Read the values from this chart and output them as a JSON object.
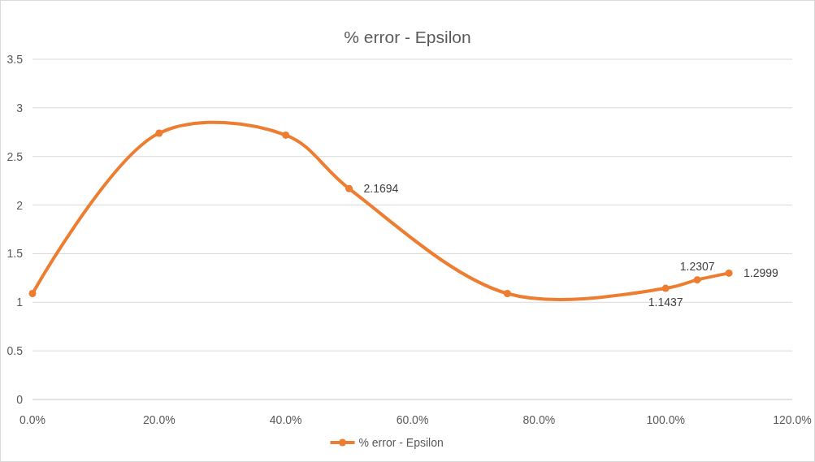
{
  "chart_data": {
    "type": "line",
    "title": "% error - Epsilon",
    "x": [
      0,
      0.2,
      0.4,
      0.5,
      0.75,
      1.0,
      1.05,
      1.1
    ],
    "series": [
      {
        "name": "% error - Epsilon",
        "color": "#ed7d31",
        "values": [
          1.09,
          2.74,
          2.72,
          2.1694,
          1.09,
          1.1437,
          1.2307,
          1.2999
        ],
        "value_labels": [
          null,
          null,
          null,
          "2.1694",
          null,
          "1.1437",
          "1.2307",
          "1.2999"
        ]
      }
    ],
    "xlim": [
      0,
      1.2
    ],
    "xticks": [
      {
        "value": 0,
        "label": "0.0%"
      },
      {
        "value": 0.2,
        "label": "20.0%"
      },
      {
        "value": 0.4,
        "label": "40.0%"
      },
      {
        "value": 0.6,
        "label": "60.0%"
      },
      {
        "value": 0.8,
        "label": "80.0%"
      },
      {
        "value": 1.0,
        "label": "100.0%"
      },
      {
        "value": 1.2,
        "label": "120.0%"
      }
    ],
    "ylim": [
      0,
      3.5
    ],
    "yticks": [
      0,
      0.5,
      1,
      1.5,
      2,
      2.5,
      3,
      3.5
    ],
    "grid": "y",
    "legend": "bottom",
    "marker": "circle",
    "line_style": "solid"
  }
}
